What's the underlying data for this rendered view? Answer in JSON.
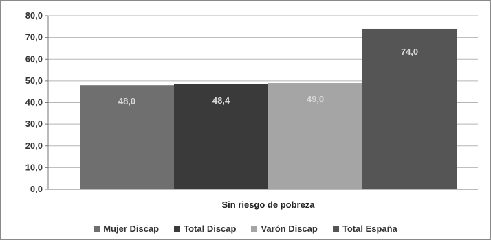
{
  "chart_data": {
    "type": "bar",
    "categories": [
      "Sin riesgo de pobreza"
    ],
    "series": [
      {
        "name": "Mujer Discap",
        "values": [
          48.0
        ],
        "label": "48,0",
        "color": "#6f6f6f",
        "label_color": "#d9d9d9"
      },
      {
        "name": "Total Discap",
        "values": [
          48.4
        ],
        "label": "48,4",
        "color": "#3a3a3a",
        "label_color": "#d9d9d9"
      },
      {
        "name": "Varón Discap",
        "values": [
          49.0
        ],
        "label": "49,0",
        "color": "#a5a5a5",
        "label_color": "#d9d9d9"
      },
      {
        "name": "Total España",
        "values": [
          74.0
        ],
        "label": "74,0",
        "color": "#555555",
        "label_color": "#d9d9d9"
      }
    ],
    "ylim": [
      0,
      80
    ],
    "yticks": [
      0,
      10,
      20,
      30,
      40,
      50,
      60,
      70,
      80
    ],
    "ytick_labels": [
      "0,0",
      "10,0",
      "20,0",
      "30,0",
      "40,0",
      "50,0",
      "60,0",
      "70,0",
      "80,0"
    ],
    "grid": true,
    "legend_position": "bottom"
  }
}
